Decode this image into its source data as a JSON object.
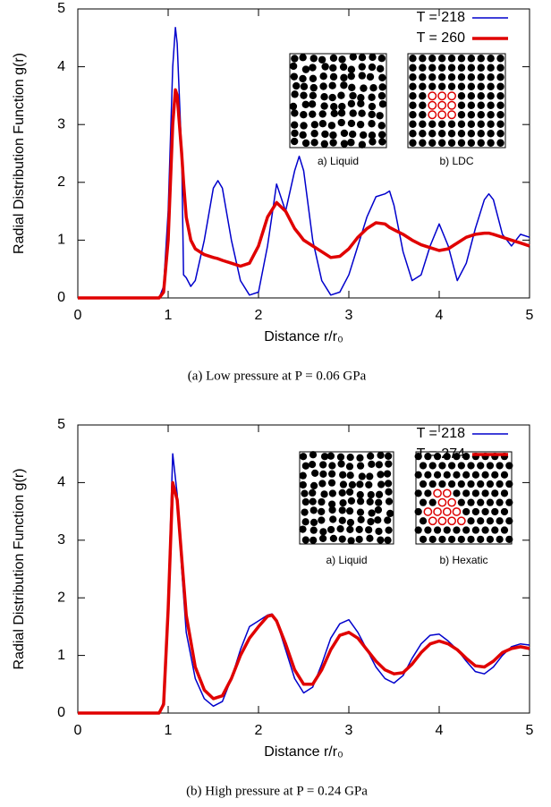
{
  "chart_data": [
    {
      "type": "line",
      "y_label": "Radial Distribution Function g(r)",
      "x_label": "Distance r/r₀",
      "caption": "(a) Low pressure at P = 0.06 GPa",
      "xlim": [
        0,
        5
      ],
      "ylim": [
        0,
        5
      ],
      "xticks": [
        0,
        1,
        2,
        3,
        4,
        5
      ],
      "yticks": [
        0,
        1,
        2,
        3,
        4,
        5
      ],
      "legend": "upper right",
      "inset_labels": [
        "a) Liquid",
        "b) LDC"
      ],
      "x": [
        0,
        0.5,
        0.9,
        0.95,
        1.0,
        1.05,
        1.08,
        1.1,
        1.15,
        1.17,
        1.2,
        1.25,
        1.3,
        1.4,
        1.5,
        1.55,
        1.6,
        1.7,
        1.8,
        1.9,
        2.0,
        2.1,
        2.2,
        2.3,
        2.4,
        2.45,
        2.5,
        2.6,
        2.7,
        2.8,
        2.9,
        3.0,
        3.1,
        3.2,
        3.3,
        3.4,
        3.45,
        3.5,
        3.6,
        3.7,
        3.8,
        3.9,
        4.0,
        4.1,
        4.2,
        4.3,
        4.4,
        4.5,
        4.55,
        4.6,
        4.7,
        4.8,
        4.9,
        5.0
      ],
      "series": [
        {
          "name": "T = 218",
          "color": "#0000cc",
          "width": 1.5,
          "values": [
            0,
            0,
            0,
            0.2,
            1.5,
            4.0,
            4.68,
            4.4,
            2.5,
            0.4,
            0.35,
            0.2,
            0.3,
            1.0,
            1.9,
            2.03,
            1.9,
            1.0,
            0.3,
            0.05,
            0.1,
            0.9,
            1.97,
            1.5,
            2.2,
            2.45,
            2.2,
            1.0,
            0.3,
            0.05,
            0.1,
            0.4,
            0.9,
            1.4,
            1.75,
            1.8,
            1.85,
            1.6,
            0.8,
            0.3,
            0.4,
            0.9,
            1.28,
            0.9,
            0.3,
            0.6,
            1.2,
            1.7,
            1.8,
            1.7,
            1.1,
            0.9,
            1.1,
            1.05
          ]
        },
        {
          "name": "T = 260",
          "color": "#e00000",
          "width": 3.5,
          "values": [
            0,
            0,
            0,
            0.1,
            1.0,
            3.0,
            3.6,
            3.5,
            2.5,
            2.0,
            1.4,
            1.0,
            0.85,
            0.75,
            0.7,
            0.68,
            0.65,
            0.6,
            0.55,
            0.6,
            0.9,
            1.4,
            1.65,
            1.5,
            1.2,
            1.1,
            1.0,
            0.9,
            0.8,
            0.7,
            0.72,
            0.85,
            1.05,
            1.2,
            1.3,
            1.28,
            1.22,
            1.18,
            1.1,
            1.0,
            0.92,
            0.87,
            0.82,
            0.85,
            0.95,
            1.05,
            1.1,
            1.12,
            1.12,
            1.1,
            1.05,
            1.0,
            0.95,
            0.9
          ]
        }
      ]
    },
    {
      "type": "line",
      "y_label": "Radial Distribution Function g(r)",
      "x_label": "Distance r/r₀",
      "caption": "(b) High pressure at P = 0.24 GPa",
      "xlim": [
        0,
        5
      ],
      "ylim": [
        0,
        5
      ],
      "xticks": [
        0,
        1,
        2,
        3,
        4,
        5
      ],
      "yticks": [
        0,
        1,
        2,
        3,
        4,
        5
      ],
      "legend": "upper right",
      "inset_labels": [
        "a) Liquid",
        "b) Hexatic"
      ],
      "x": [
        0,
        0.5,
        0.9,
        0.95,
        1.0,
        1.05,
        1.1,
        1.15,
        1.2,
        1.3,
        1.4,
        1.5,
        1.6,
        1.7,
        1.8,
        1.9,
        2.0,
        2.1,
        2.15,
        2.2,
        2.3,
        2.4,
        2.5,
        2.6,
        2.7,
        2.8,
        2.9,
        3.0,
        3.1,
        3.2,
        3.3,
        3.4,
        3.5,
        3.6,
        3.7,
        3.8,
        3.9,
        4.0,
        4.1,
        4.2,
        4.3,
        4.4,
        4.5,
        4.6,
        4.7,
        4.8,
        4.9,
        5.0
      ],
      "series": [
        {
          "name": "T = 218",
          "color": "#0000cc",
          "width": 1.5,
          "values": [
            0,
            0,
            0,
            0.2,
            2.0,
            4.5,
            3.8,
            2.5,
            1.4,
            0.6,
            0.25,
            0.12,
            0.2,
            0.6,
            1.1,
            1.5,
            1.6,
            1.7,
            1.72,
            1.6,
            1.1,
            0.6,
            0.35,
            0.45,
            0.85,
            1.3,
            1.55,
            1.62,
            1.4,
            1.1,
            0.8,
            0.6,
            0.52,
            0.65,
            0.95,
            1.2,
            1.35,
            1.37,
            1.25,
            1.1,
            0.9,
            0.72,
            0.68,
            0.8,
            1.0,
            1.15,
            1.2,
            1.18
          ]
        },
        {
          "name": "T = 274",
          "color": "#e00000",
          "width": 3.5,
          "values": [
            0,
            0,
            0,
            0.15,
            1.8,
            4.0,
            3.7,
            2.7,
            1.7,
            0.8,
            0.4,
            0.25,
            0.3,
            0.6,
            1.0,
            1.3,
            1.5,
            1.68,
            1.7,
            1.6,
            1.2,
            0.75,
            0.5,
            0.5,
            0.75,
            1.1,
            1.35,
            1.4,
            1.3,
            1.1,
            0.9,
            0.75,
            0.68,
            0.7,
            0.85,
            1.05,
            1.2,
            1.25,
            1.2,
            1.1,
            0.95,
            0.82,
            0.8,
            0.9,
            1.05,
            1.12,
            1.15,
            1.12
          ]
        }
      ]
    }
  ]
}
